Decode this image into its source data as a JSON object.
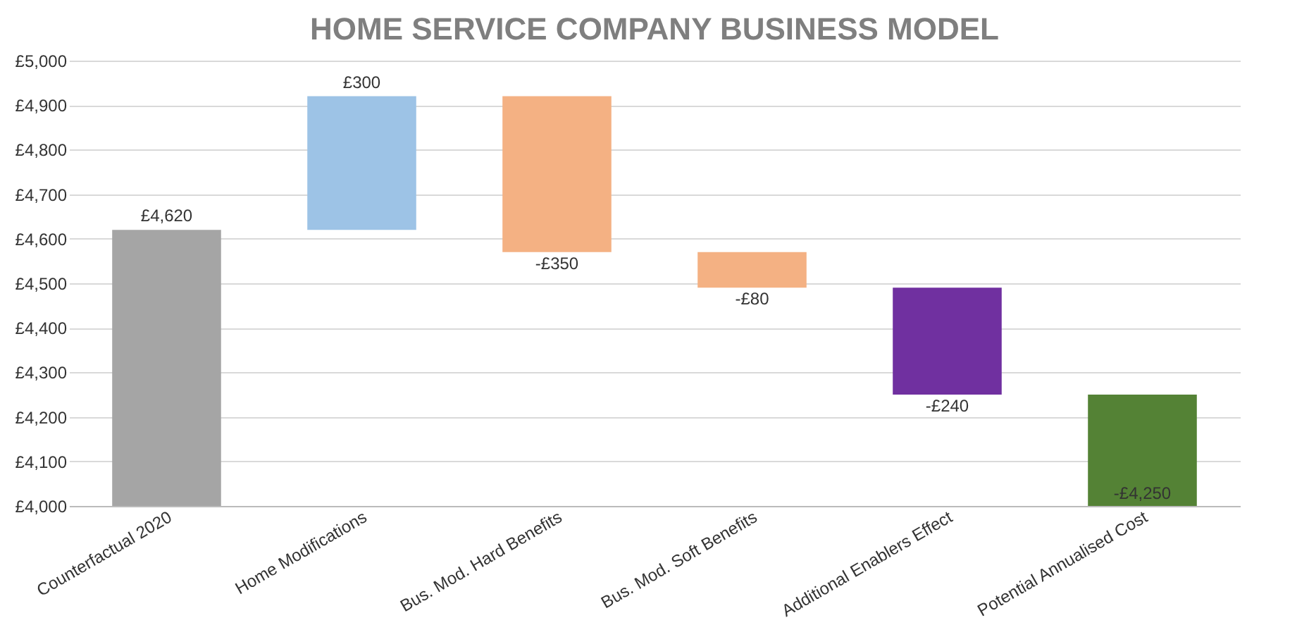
{
  "chart_data": {
    "type": "bar",
    "title": "HOME SERVICE COMPANY BUSINESS MODEL",
    "categories": [
      "Counterfactual 2020",
      "Home Modifications",
      "Bus. Mod. Hard Benefits",
      "Bus. Mod. Soft Benefits",
      "Additional Enablers Effect",
      "Potential Annualised Cost"
    ],
    "base": [
      4000,
      4620,
      4920,
      4570,
      4490,
      4000
    ],
    "values": [
      620,
      300,
      -350,
      -80,
      -240,
      250
    ],
    "value_labels": [
      "£4,620",
      "£300",
      "-£350",
      "-£80",
      "-£240",
      null
    ],
    "annotations": [
      {
        "text": "-£4,250",
        "x": "Potential Annualised Cost",
        "y": 4000
      }
    ],
    "colors": [
      "#a5a5a5",
      "#9dc3e6",
      "#f4b183",
      "#f4b183",
      "#7030a0",
      "#548235"
    ],
    "ylim": [
      4000,
      5000
    ],
    "yticks": [
      {
        "value": 4000,
        "label": "£4,000"
      },
      {
        "value": 4100,
        "label": "£4,100"
      },
      {
        "value": 4200,
        "label": "£4,200"
      },
      {
        "value": 4300,
        "label": "£4,300"
      },
      {
        "value": 4400,
        "label": "£4,400"
      },
      {
        "value": 4500,
        "label": "£4,500"
      },
      {
        "value": 4600,
        "label": "£4,600"
      },
      {
        "value": 4700,
        "label": "£4,700"
      },
      {
        "value": 4800,
        "label": "£4,800"
      },
      {
        "value": 4900,
        "label": "£4,900"
      },
      {
        "value": 5000,
        "label": "£5,000"
      }
    ],
    "grid": true,
    "legend": false
  }
}
